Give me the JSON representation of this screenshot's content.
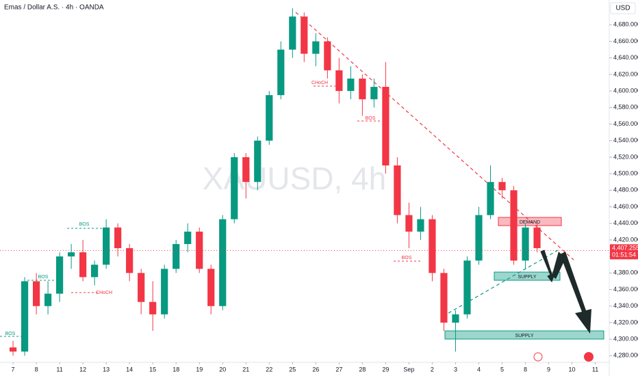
{
  "chart_data": {
    "type": "candlestick",
    "title": "Emas / Dollar A.S. · 4h · OANDA",
    "watermark": "XAUUSD, 4h",
    "currency": "USD",
    "up_color": "#089981",
    "down_color": "#f23645",
    "candles": {
      "open": [
        4290,
        4285,
        4370,
        4340,
        4355,
        4400,
        4405,
        4375,
        4390,
        4435,
        4410,
        4380,
        4345,
        4330,
        4385,
        4415,
        4430,
        4385,
        4340,
        4445,
        4520,
        4490,
        4540,
        4595,
        4650,
        4690,
        4645,
        4660,
        4625,
        4600,
        4615,
        4590,
        4605,
        4510,
        4450,
        4430,
        4445,
        4380,
        4320,
        4330,
        4395,
        4450,
        4490,
        4480,
        4395,
        4435
      ],
      "high": [
        4298,
        4375,
        4380,
        4370,
        4405,
        4415,
        4420,
        4395,
        4445,
        4440,
        4415,
        4385,
        4370,
        4390,
        4420,
        4440,
        4435,
        4390,
        4450,
        4525,
        4525,
        4545,
        4600,
        4660,
        4700,
        4695,
        4670,
        4665,
        4640,
        4630,
        4620,
        4615,
        4635,
        4520,
        4465,
        4460,
        4450,
        4385,
        4335,
        4400,
        4460,
        4510,
        4495,
        4485,
        4440,
        4440
      ],
      "low": [
        4280,
        4280,
        4330,
        4330,
        4345,
        4385,
        4370,
        4365,
        4385,
        4400,
        4370,
        4330,
        4310,
        4325,
        4380,
        4405,
        4380,
        4330,
        4335,
        4440,
        4470,
        4480,
        4535,
        4590,
        4640,
        4635,
        4630,
        4615,
        4585,
        4590,
        4570,
        4580,
        4500,
        4440,
        4410,
        4420,
        4370,
        4310,
        4285,
        4325,
        4390,
        4445,
        4470,
        4390,
        4385,
        4405
      ],
      "close": [
        4285,
        4370,
        4340,
        4355,
        4400,
        4405,
        4375,
        4390,
        4435,
        4410,
        4380,
        4345,
        4330,
        4385,
        4415,
        4430,
        4385,
        4340,
        4445,
        4520,
        4490,
        4540,
        4595,
        4650,
        4690,
        4645,
        4660,
        4625,
        4600,
        4615,
        4590,
        4605,
        4510,
        4450,
        4430,
        4445,
        4380,
        4320,
        4330,
        4395,
        4450,
        4490,
        4480,
        4395,
        4435,
        4410
      ]
    },
    "xlim": [
      -1.12,
      51.2
    ],
    "xticks": [
      {
        "value": 0,
        "label": "7"
      },
      {
        "value": 2,
        "label": "8"
      },
      {
        "value": 4,
        "label": "11"
      },
      {
        "value": 6,
        "label": "12"
      },
      {
        "value": 8,
        "label": "13"
      },
      {
        "value": 10,
        "label": "14"
      },
      {
        "value": 12,
        "label": "15"
      },
      {
        "value": 14,
        "label": "18"
      },
      {
        "value": 16,
        "label": "19"
      },
      {
        "value": 18,
        "label": "20"
      },
      {
        "value": 20,
        "label": "21"
      },
      {
        "value": 22,
        "label": "22"
      },
      {
        "value": 24,
        "label": "25"
      },
      {
        "value": 26,
        "label": "26"
      },
      {
        "value": 28,
        "label": "27"
      },
      {
        "value": 30,
        "label": "28"
      },
      {
        "value": 32,
        "label": "29"
      },
      {
        "value": 34,
        "label": "Sep"
      },
      {
        "value": 36,
        "label": "2"
      },
      {
        "value": 38,
        "label": "3"
      },
      {
        "value": 40,
        "label": "4"
      },
      {
        "value": 42,
        "label": "5"
      },
      {
        "value": 44,
        "label": "8"
      },
      {
        "value": 46,
        "label": "9"
      },
      {
        "value": 48,
        "label": "10"
      },
      {
        "value": 50,
        "label": "11"
      }
    ],
    "ylim": [
      4272,
      4710
    ],
    "yticks": [
      {
        "value": 4280,
        "label": "4,280.000"
      },
      {
        "value": 4300,
        "label": "4,300.000"
      },
      {
        "value": 4320,
        "label": "4,320.000"
      },
      {
        "value": 4340,
        "label": "4,340.000"
      },
      {
        "value": 4360,
        "label": "4,360.000"
      },
      {
        "value": 4380,
        "label": "4,380.000"
      },
      {
        "value": 4400,
        "label": "4,400.000"
      },
      {
        "value": 4420,
        "label": "4,420.000"
      },
      {
        "value": 4440,
        "label": "4,440.000"
      },
      {
        "value": 4460,
        "label": "4,460.000"
      },
      {
        "value": 4480,
        "label": "4,480.000"
      },
      {
        "value": 4500,
        "label": "4,500.000"
      },
      {
        "value": 4520,
        "label": "4,520.000"
      },
      {
        "value": 4540,
        "label": "4,540.000"
      },
      {
        "value": 4560,
        "label": "4,560.000"
      },
      {
        "value": 4580,
        "label": "4,580.000"
      },
      {
        "value": 4600,
        "label": "4,600.000"
      },
      {
        "value": 4620,
        "label": "4,620.000"
      },
      {
        "value": 4640,
        "label": "4,640.000"
      },
      {
        "value": 4660,
        "label": "4,660.000"
      },
      {
        "value": 4680,
        "label": "4,680.000"
      }
    ],
    "current_price": {
      "value": 4407.255,
      "label": "4,407.255"
    },
    "countdown": "01:51:54",
    "annotations": [
      "BOS",
      "BOS",
      "BOS",
      "CHoCH",
      "CHoCH",
      "BOS",
      "BOS"
    ],
    "zones": [
      "DEMAND",
      "SUPPLY",
      "SUPPLY"
    ]
  }
}
